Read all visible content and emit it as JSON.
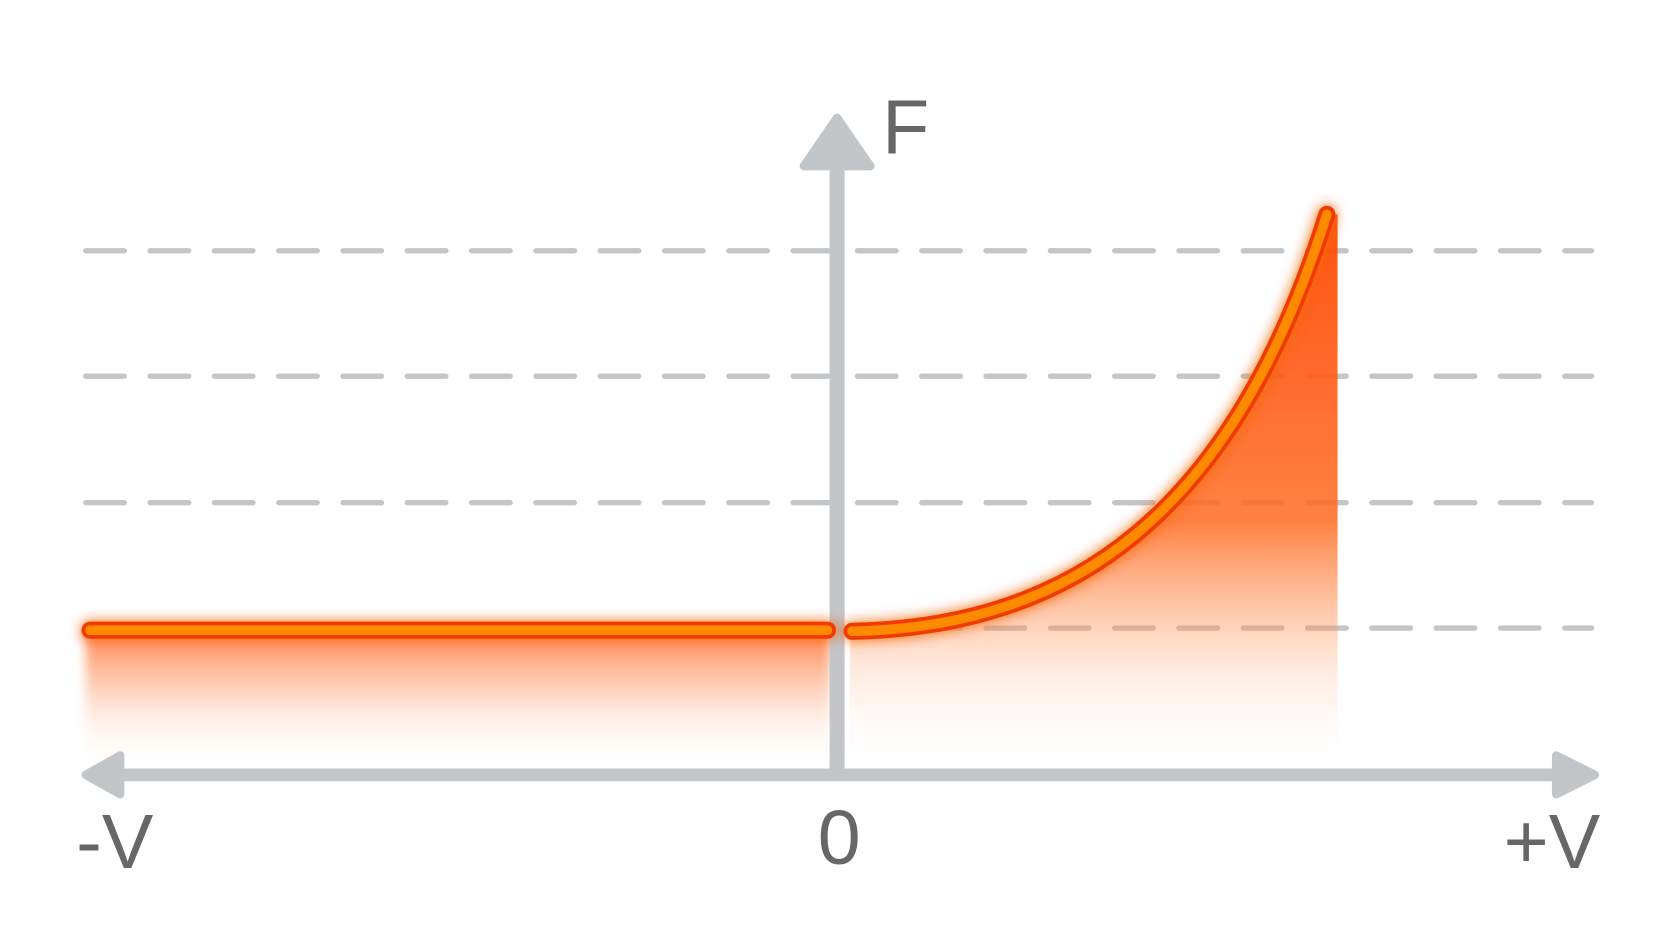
{
  "axes": {
    "y_label": "F",
    "x_left_label": "-V",
    "x_origin_label": "0",
    "x_right_label": "+V"
  }
}
